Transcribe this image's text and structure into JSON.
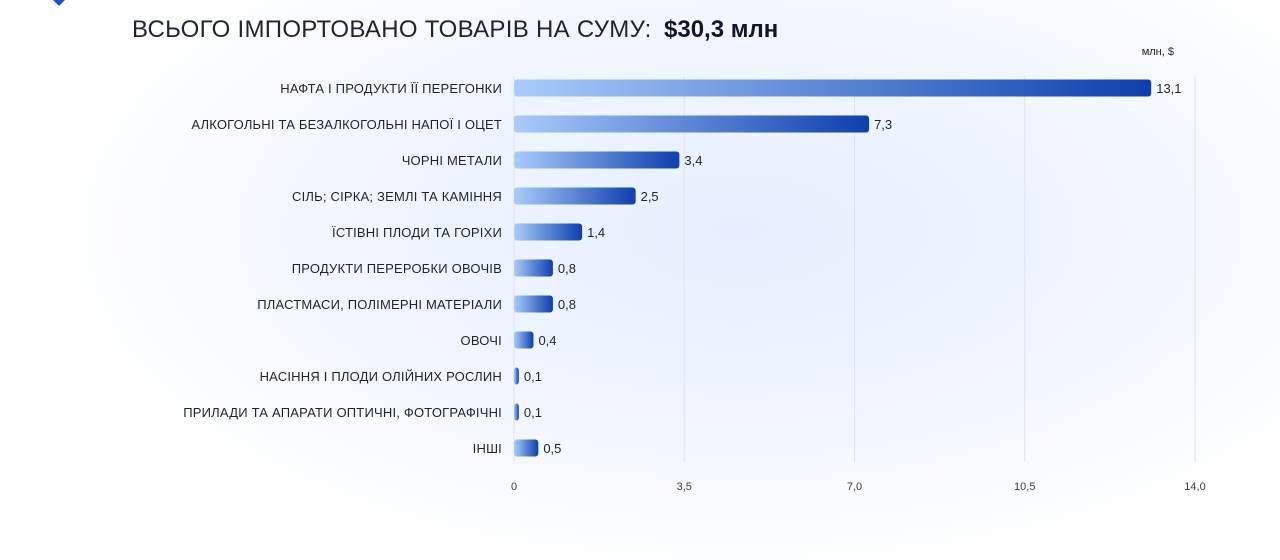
{
  "header": {
    "title_prefix": "ВСЬОГО ІМПОРТОВАНО ТОВАРІВ НА СУМУ:",
    "title_value": "$30,3 млн"
  },
  "colors": {
    "bar_start": "#a9ccfb",
    "bar_end": "#0d3fae",
    "text": "#1f2433",
    "grid": "#dde3ee"
  },
  "chart_data": {
    "type": "bar",
    "orientation": "horizontal",
    "title": "ВСЬОГО ІМПОРТОВАНО ТОВАРІВ НА СУМУ: $30,3 млн",
    "unit": "млн, $",
    "xlim": [
      0,
      14
    ],
    "xticks": [
      0,
      3.5,
      7.0,
      10.5,
      14.0
    ],
    "xtick_labels": [
      "0",
      "3,5",
      "7,0",
      "10,5",
      "14,0"
    ],
    "grid": true,
    "categories": [
      "НАФТА І ПРОДУКТИ ЇЇ ПЕРЕГОНКИ",
      "АЛКОГОЛЬНІ ТА БЕЗАЛКОГОЛЬНІ НАПОЇ І ОЦЕТ",
      "ЧОРНІ МЕТАЛИ",
      "СІЛЬ; СІРКА; ЗЕМЛІ ТА КАМІННЯ",
      "ЇСТІВНІ ПЛОДИ ТА ГОРІХИ",
      "ПРОДУКТИ ПЕРЕРОБКИ ОВОЧІВ",
      "ПЛАСТМАСИ, ПОЛІМЕРНІ МАТЕРІАЛИ",
      "ОВОЧІ",
      "НАСІННЯ І ПЛОДИ ОЛІЙНИХ РОСЛИН",
      "ПРИЛАДИ ТА АПАРАТИ ОПТИЧНІ, ФОТОГРАФІЧНІ",
      "ІНШІ"
    ],
    "values": [
      13.1,
      7.3,
      3.4,
      2.5,
      1.4,
      0.8,
      0.8,
      0.4,
      0.1,
      0.1,
      0.5
    ],
    "value_labels": [
      "13,1",
      "7,3",
      "3,4",
      "2,5",
      "1,4",
      "0,8",
      "0,8",
      "0,4",
      "0,1",
      "0,1",
      "0,5"
    ]
  }
}
